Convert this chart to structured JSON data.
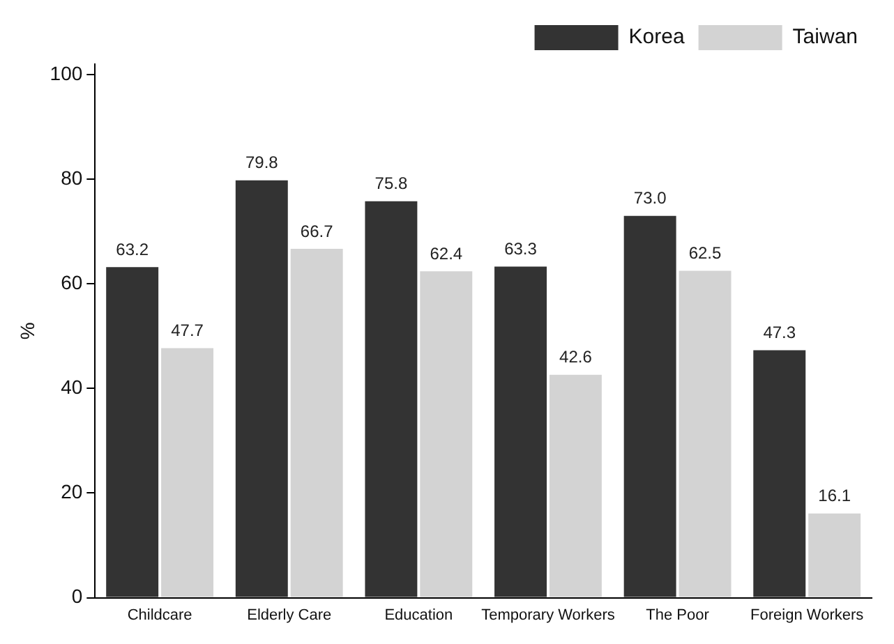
{
  "chart_data": {
    "type": "bar",
    "ylabel": "%",
    "categories": [
      "Childcare",
      "Elderly Care",
      "Education",
      "Temporary Workers",
      "The Poor",
      "Foreign Workers"
    ],
    "series": [
      {
        "name": "Korea",
        "color": "#333333",
        "values": [
          63.2,
          79.8,
          75.8,
          63.3,
          73.0,
          47.3
        ],
        "value_labels": [
          "63.2",
          "79.8",
          "75.8",
          "63.3",
          "73.0",
          "47.3"
        ]
      },
      {
        "name": "Taiwan",
        "color": "#d3d3d3",
        "values": [
          47.7,
          66.7,
          62.4,
          42.6,
          62.5,
          16.1
        ],
        "value_labels": [
          "47.7",
          "66.7",
          "62.4",
          "42.6",
          "62.5",
          "16.1"
        ]
      }
    ],
    "ylim": [
      0,
      102
    ],
    "yticks": [
      0,
      20,
      40,
      60,
      80,
      100
    ],
    "grid": false,
    "legend": "top right"
  }
}
